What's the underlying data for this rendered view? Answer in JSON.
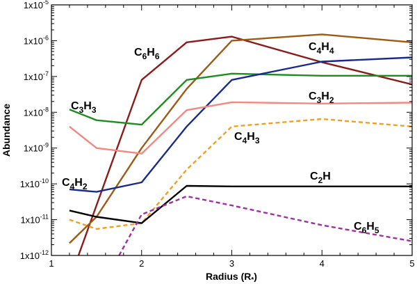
{
  "chart_data": {
    "type": "line",
    "xlabel": "Radius (R",
    "xlabel_subscript": "*",
    "xlabel_close": ")",
    "ylabel": "Abundance",
    "xlim": [
      1,
      5
    ],
    "ylim": [
      1e-12,
      1e-05
    ],
    "yscale": "log",
    "grid": false,
    "x_ticks": [
      1,
      2,
      3,
      4,
      5
    ],
    "x_tick_labels": [
      "1",
      "2",
      "3",
      "4",
      "5"
    ],
    "y_tick_labels": [
      {
        "mantissa": "1x10",
        "exponent": "-12"
      },
      {
        "mantissa": "1x10",
        "exponent": "-11"
      },
      {
        "mantissa": "1x10",
        "exponent": "-10"
      },
      {
        "mantissa": "1x10",
        "exponent": "-9"
      },
      {
        "mantissa": "1x10",
        "exponent": "-8"
      },
      {
        "mantissa": "1x10",
        "exponent": "-7"
      },
      {
        "mantissa": "1x10",
        "exponent": "-6"
      },
      {
        "mantissa": "1x10",
        "exponent": "-5"
      }
    ],
    "series": [
      {
        "name": "C6H6",
        "label_parts": [
          [
            "C",
            ""
          ],
          [
            "6",
            "sub"
          ],
          [
            "H",
            ""
          ],
          [
            "6",
            "sub"
          ]
        ],
        "color": "#8b1a1a",
        "dash": false,
        "x": [
          1.3,
          2.0,
          2.5,
          3.0,
          4.0,
          5.0
        ],
        "y": [
          1e-12,
          8e-08,
          9e-07,
          1.3e-06,
          2.5e-07,
          6e-08
        ]
      },
      {
        "name": "C4H4",
        "label_parts": [
          [
            "C",
            ""
          ],
          [
            "4",
            "sub"
          ],
          [
            "H",
            ""
          ],
          [
            "4",
            "sub"
          ]
        ],
        "color": "#9c5a14",
        "dash": false,
        "x": [
          1.2,
          1.5,
          2.0,
          2.5,
          3.0,
          4.0,
          5.0
        ],
        "y": [
          2.2e-12,
          1.2e-11,
          1e-09,
          4.5e-08,
          1e-06,
          1.5e-06,
          9e-07
        ]
      },
      {
        "name": "C3H3",
        "label_parts": [
          [
            "C",
            ""
          ],
          [
            "3",
            "sub"
          ],
          [
            "H",
            ""
          ],
          [
            "3",
            "sub"
          ]
        ],
        "color": "#1e8c1e",
        "dash": false,
        "x": [
          1.2,
          1.5,
          2.0,
          2.5,
          3.0,
          4.0,
          5.0
        ],
        "y": [
          1.2e-08,
          6e-09,
          4.5e-09,
          8e-08,
          1.2e-07,
          1.05e-07,
          1.05e-07
        ]
      },
      {
        "name": "blue",
        "label_parts": [],
        "color": "#1a2a8c",
        "dash": false,
        "x": [
          1.2,
          1.5,
          2.0,
          2.5,
          3.0,
          4.0,
          5.0
        ],
        "y": [
          7e-11,
          6e-11,
          1.1e-10,
          4e-09,
          8e-08,
          2.6e-07,
          3.4e-07
        ]
      },
      {
        "name": "C3H2",
        "label_parts": [
          [
            "C",
            ""
          ],
          [
            "3",
            "sub"
          ],
          [
            "H",
            ""
          ],
          [
            "2",
            "sub"
          ]
        ],
        "color": "#f08a80",
        "dash": false,
        "x": [
          1.2,
          1.5,
          2.0,
          2.5,
          3.0,
          4.0,
          5.0
        ],
        "y": [
          4e-09,
          1e-09,
          7e-10,
          1.15e-08,
          1.9e-08,
          1.75e-08,
          1.85e-08
        ]
      },
      {
        "name": "C4H3",
        "label_parts": [
          [
            "C",
            ""
          ],
          [
            "4",
            "sub"
          ],
          [
            "H",
            ""
          ],
          [
            "3",
            "sub"
          ]
        ],
        "color": "#f0a020",
        "dash": true,
        "x": [
          1.2,
          1.5,
          2.0,
          2.5,
          3.0,
          4.0,
          5.0
        ],
        "y": [
          1e-11,
          5.5e-12,
          8e-12,
          2.5e-10,
          4e-09,
          6.5e-09,
          4e-09
        ]
      },
      {
        "name": "C2H",
        "label_parts": [
          [
            "C",
            ""
          ],
          [
            "2",
            "sub"
          ],
          [
            "H",
            ""
          ]
        ],
        "color": "#000000",
        "dash": false,
        "x": [
          1.2,
          1.5,
          2.0,
          2.5,
          3.0,
          4.0,
          5.0
        ],
        "y": [
          1.8e-11,
          1.2e-11,
          8e-12,
          8.8e-11,
          8.5e-11,
          8.5e-11,
          8.5e-11
        ]
      },
      {
        "name": "C4H2",
        "label_parts": [
          [
            "C",
            ""
          ],
          [
            "4",
            "sub"
          ],
          [
            "H",
            ""
          ],
          [
            "2",
            "sub"
          ]
        ],
        "color": "#1a2a8c",
        "dash": false,
        "x": [],
        "y": []
      },
      {
        "name": "C6H5",
        "label_parts": [
          [
            "C",
            ""
          ],
          [
            "6",
            "sub"
          ],
          [
            "H",
            ""
          ],
          [
            "5",
            "sub"
          ]
        ],
        "color": "#a030a0",
        "dash": true,
        "x": [
          1.75,
          2.0,
          2.5,
          3.0,
          4.0,
          5.0
        ],
        "y": [
          1e-12,
          1.4e-11,
          4.5e-11,
          2.5e-11,
          7e-12,
          2.5e-12
        ]
      }
    ]
  }
}
